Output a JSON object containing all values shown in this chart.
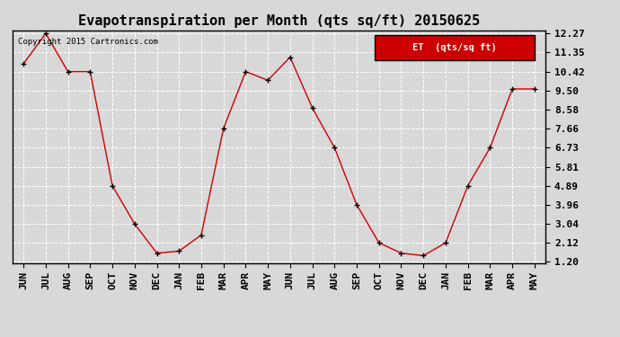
{
  "title": "Evapotranspiration per Month (qts sq/ft) 20150625",
  "copyright": "Copyright 2015 Cartronics.com",
  "legend_label": "ET  (qts/sq ft)",
  "months": [
    "JUN",
    "JUL",
    "AUG",
    "SEP",
    "OCT",
    "NOV",
    "DEC",
    "JAN",
    "FEB",
    "MAR",
    "APR",
    "MAY",
    "JUN",
    "JUL",
    "AUG",
    "SEP",
    "OCT",
    "NOV",
    "DEC",
    "JAN",
    "FEB",
    "MAR",
    "APR",
    "MAY"
  ],
  "values": [
    10.8,
    12.27,
    10.42,
    10.42,
    4.89,
    3.04,
    1.62,
    1.72,
    2.5,
    7.66,
    10.42,
    10.0,
    11.12,
    8.66,
    6.73,
    3.96,
    2.12,
    1.62,
    1.5,
    2.12,
    4.89,
    6.73,
    9.58,
    9.58
  ],
  "yticks": [
    1.2,
    2.12,
    3.04,
    3.96,
    4.89,
    5.81,
    6.73,
    7.66,
    8.58,
    9.5,
    10.42,
    11.35,
    12.27
  ],
  "ylim": [
    1.2,
    12.27
  ],
  "line_color": "#cc0000",
  "marker": "+",
  "marker_color": "#000000",
  "background_color": "#d8d8d8",
  "grid_color": "#ffffff",
  "title_fontsize": 11,
  "tick_fontsize": 8,
  "legend_bg": "#cc0000",
  "legend_text_color": "#ffffff"
}
